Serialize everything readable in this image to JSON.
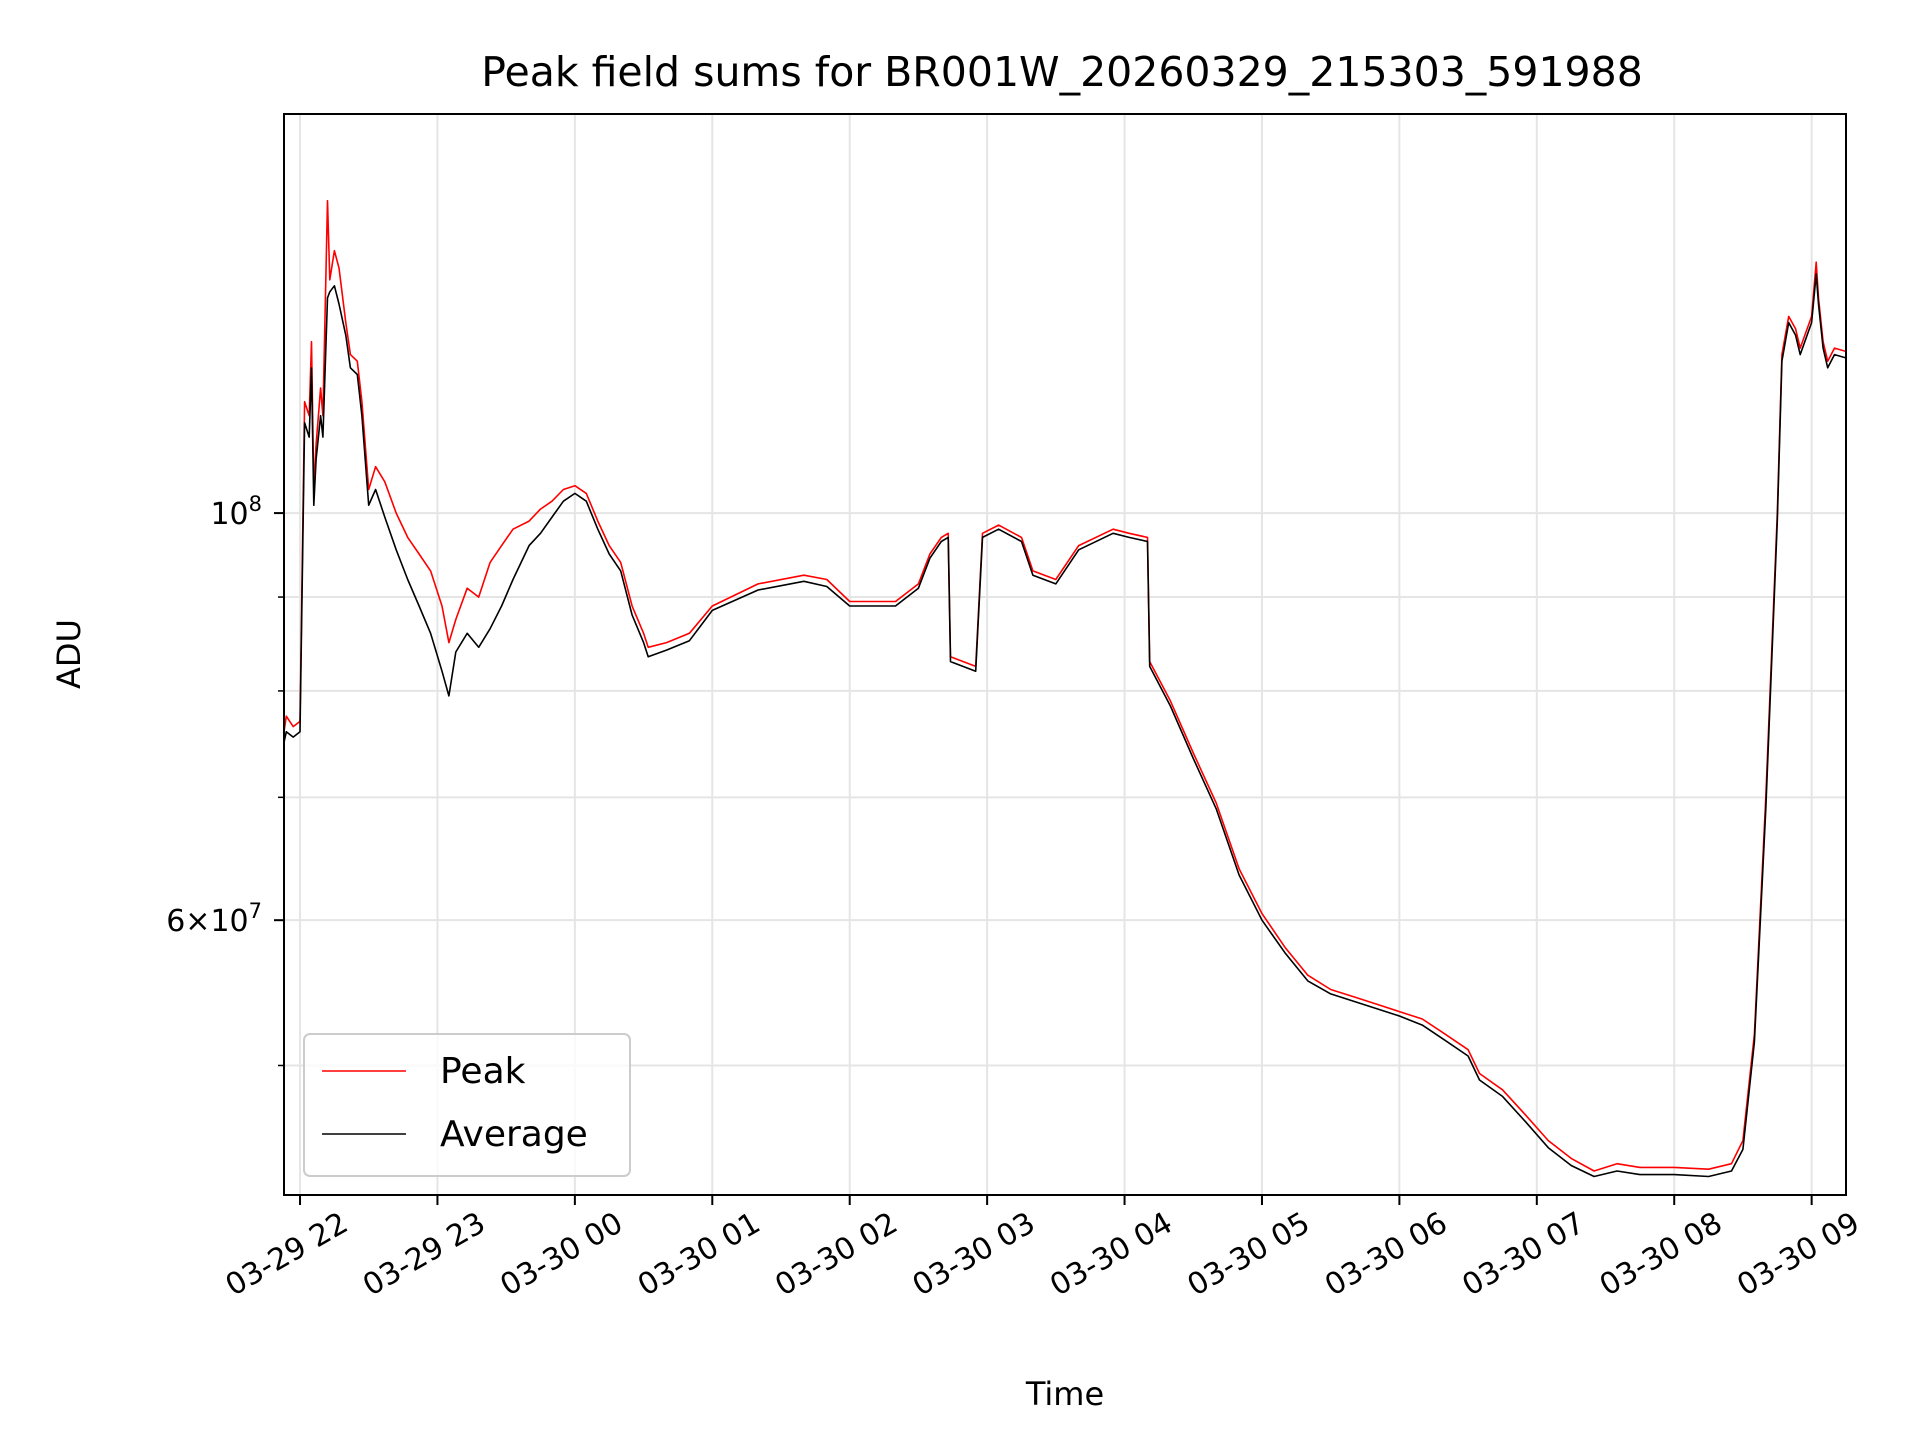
{
  "chart_data": {
    "type": "line",
    "title": "Peak field sums for BR001W_20260329_215303_591988",
    "xlabel": "Time",
    "ylabel": "ADU",
    "x_scale": "time",
    "y_scale": "log",
    "xlim": [
      "2026-03-29 21:53",
      "2026-03-30 09:15"
    ],
    "ylim": [
      42500000,
      165000000
    ],
    "x_ticks": [
      {
        "time": "2026-03-29 22:00",
        "label": "03-29 22"
      },
      {
        "time": "2026-03-29 23:00",
        "label": "03-29 23"
      },
      {
        "time": "2026-03-30 00:00",
        "label": "03-30 00"
      },
      {
        "time": "2026-03-30 01:00",
        "label": "03-30 01"
      },
      {
        "time": "2026-03-30 02:00",
        "label": "03-30 02"
      },
      {
        "time": "2026-03-30 03:00",
        "label": "03-30 03"
      },
      {
        "time": "2026-03-30 04:00",
        "label": "03-30 04"
      },
      {
        "time": "2026-03-30 05:00",
        "label": "03-30 05"
      },
      {
        "time": "2026-03-30 06:00",
        "label": "03-30 06"
      },
      {
        "time": "2026-03-30 07:00",
        "label": "03-30 07"
      },
      {
        "time": "2026-03-30 08:00",
        "label": "03-30 08"
      },
      {
        "time": "2026-03-30 09:00",
        "label": "03-30 09"
      }
    ],
    "y_ticks_major": [
      {
        "value": 100000000,
        "base": "10",
        "exp": "8",
        "mantissa": ""
      },
      {
        "value": 60000000,
        "base": "10",
        "exp": "7",
        "mantissa": "6"
      }
    ],
    "y_ticks_minor": [
      50000000,
      70000000,
      80000000,
      90000000
    ],
    "grid": true,
    "legend": {
      "placement": "lower-left",
      "entries": [
        "Peak",
        "Average"
      ]
    },
    "series": [
      {
        "name": "Peak",
        "color": "#ff0000",
        "points": [
          [
            "2026-03-29 21:53",
            76000000
          ],
          [
            "2026-03-29 21:54",
            77500000
          ],
          [
            "2026-03-29 21:57",
            76500000
          ],
          [
            "2026-03-29 22:00",
            77000000
          ],
          [
            "2026-03-29 22:02",
            115000000
          ],
          [
            "2026-03-29 22:04",
            113000000
          ],
          [
            "2026-03-29 22:05",
            124000000
          ],
          [
            "2026-03-29 22:06",
            103000000
          ],
          [
            "2026-03-29 22:07",
            109000000
          ],
          [
            "2026-03-29 22:08",
            113000000
          ],
          [
            "2026-03-29 22:09",
            117000000
          ],
          [
            "2026-03-29 22:10",
            113000000
          ],
          [
            "2026-03-29 22:12",
            148000000
          ],
          [
            "2026-03-29 22:13",
            134000000
          ],
          [
            "2026-03-29 22:15",
            139000000
          ],
          [
            "2026-03-29 22:17",
            136000000
          ],
          [
            "2026-03-29 22:20",
            127000000
          ],
          [
            "2026-03-29 22:22",
            122000000
          ],
          [
            "2026-03-29 22:25",
            121000000
          ],
          [
            "2026-03-29 22:27",
            115000000
          ],
          [
            "2026-03-29 22:30",
            103000000
          ],
          [
            "2026-03-29 22:33",
            106000000
          ],
          [
            "2026-03-29 22:37",
            104000000
          ],
          [
            "2026-03-29 22:42",
            100000000
          ],
          [
            "2026-03-29 22:47",
            97000000
          ],
          [
            "2026-03-29 22:52",
            95000000
          ],
          [
            "2026-03-29 22:57",
            93000000
          ],
          [
            "2026-03-29 23:02",
            89000000
          ],
          [
            "2026-03-29 23:05",
            85000000
          ],
          [
            "2026-03-29 23:08",
            87500000
          ],
          [
            "2026-03-29 23:13",
            91000000
          ],
          [
            "2026-03-29 23:18",
            90000000
          ],
          [
            "2026-03-29 23:23",
            94000000
          ],
          [
            "2026-03-29 23:28",
            96000000
          ],
          [
            "2026-03-29 23:33",
            98000000
          ],
          [
            "2026-03-29 23:40",
            99000000
          ],
          [
            "2026-03-29 23:45",
            100500000
          ],
          [
            "2026-03-29 23:50",
            101500000
          ],
          [
            "2026-03-29 23:55",
            103000000
          ],
          [
            "2026-03-30 00:00",
            103500000
          ],
          [
            "2026-03-30 00:05",
            102500000
          ],
          [
            "2026-03-30 00:10",
            99000000
          ],
          [
            "2026-03-30 00:15",
            96000000
          ],
          [
            "2026-03-30 00:20",
            94000000
          ],
          [
            "2026-03-30 00:25",
            89000000
          ],
          [
            "2026-03-30 00:30",
            86000000
          ],
          [
            "2026-03-30 00:32",
            84500000
          ],
          [
            "2026-03-30 00:40",
            85000000
          ],
          [
            "2026-03-30 00:50",
            86000000
          ],
          [
            "2026-03-30 01:00",
            89000000
          ],
          [
            "2026-03-30 01:20",
            91500000
          ],
          [
            "2026-03-30 01:40",
            92500000
          ],
          [
            "2026-03-30 01:50",
            92000000
          ],
          [
            "2026-03-30 02:00",
            89500000
          ],
          [
            "2026-03-30 02:20",
            89500000
          ],
          [
            "2026-03-30 02:30",
            91500000
          ],
          [
            "2026-03-30 02:35",
            95000000
          ],
          [
            "2026-03-30 02:40",
            97000000
          ],
          [
            "2026-03-30 02:43",
            97500000
          ],
          [
            "2026-03-30 02:44",
            83500000
          ],
          [
            "2026-03-30 02:55",
            82500000
          ],
          [
            "2026-03-30 02:58",
            97500000
          ],
          [
            "2026-03-30 03:05",
            98500000
          ],
          [
            "2026-03-30 03:15",
            97000000
          ],
          [
            "2026-03-30 03:20",
            93000000
          ],
          [
            "2026-03-30 03:30",
            92000000
          ],
          [
            "2026-03-30 03:40",
            96000000
          ],
          [
            "2026-03-30 03:55",
            98000000
          ],
          [
            "2026-03-30 04:02",
            97500000
          ],
          [
            "2026-03-30 04:10",
            97000000
          ],
          [
            "2026-03-30 04:11",
            83000000
          ],
          [
            "2026-03-30 04:20",
            79000000
          ],
          [
            "2026-03-30 04:30",
            74000000
          ],
          [
            "2026-03-30 04:40",
            69500000
          ],
          [
            "2026-03-30 04:50",
            64000000
          ],
          [
            "2026-03-30 05:00",
            60500000
          ],
          [
            "2026-03-30 05:10",
            58000000
          ],
          [
            "2026-03-30 05:20",
            56000000
          ],
          [
            "2026-03-30 05:30",
            55000000
          ],
          [
            "2026-03-30 05:40",
            54500000
          ],
          [
            "2026-03-30 05:50",
            54000000
          ],
          [
            "2026-03-30 06:00",
            53500000
          ],
          [
            "2026-03-30 06:10",
            53000000
          ],
          [
            "2026-03-30 06:20",
            52000000
          ],
          [
            "2026-03-30 06:30",
            51000000
          ],
          [
            "2026-03-30 06:35",
            49500000
          ],
          [
            "2026-03-30 06:45",
            48500000
          ],
          [
            "2026-03-30 06:55",
            47000000
          ],
          [
            "2026-03-30 07:05",
            45500000
          ],
          [
            "2026-03-30 07:15",
            44500000
          ],
          [
            "2026-03-30 07:25",
            43800000
          ],
          [
            "2026-03-30 07:35",
            44200000
          ],
          [
            "2026-03-30 07:45",
            44000000
          ],
          [
            "2026-03-30 08:00",
            44000000
          ],
          [
            "2026-03-30 08:15",
            43900000
          ],
          [
            "2026-03-30 08:25",
            44200000
          ],
          [
            "2026-03-30 08:30",
            45500000
          ],
          [
            "2026-03-30 08:35",
            52000000
          ],
          [
            "2026-03-30 08:40",
            70000000
          ],
          [
            "2026-03-30 08:45",
            100000000
          ],
          [
            "2026-03-30 08:47",
            122000000
          ],
          [
            "2026-03-30 08:50",
            128000000
          ],
          [
            "2026-03-30 08:53",
            126000000
          ],
          [
            "2026-03-30 08:55",
            123000000
          ],
          [
            "2026-03-30 09:00",
            128000000
          ],
          [
            "2026-03-30 09:02",
            137000000
          ],
          [
            "2026-03-30 09:03",
            131000000
          ],
          [
            "2026-03-30 09:05",
            124000000
          ],
          [
            "2026-03-30 09:07",
            121000000
          ],
          [
            "2026-03-30 09:10",
            123000000
          ],
          [
            "2026-03-30 09:15",
            122500000
          ]
        ]
      },
      {
        "name": "Average",
        "color": "#000000",
        "points": [
          [
            "2026-03-29 21:53",
            75000000
          ],
          [
            "2026-03-29 21:54",
            76000000
          ],
          [
            "2026-03-29 21:57",
            75500000
          ],
          [
            "2026-03-29 22:00",
            76000000
          ],
          [
            "2026-03-29 22:02",
            112000000
          ],
          [
            "2026-03-29 22:04",
            110000000
          ],
          [
            "2026-03-29 22:05",
            120000000
          ],
          [
            "2026-03-29 22:06",
            101000000
          ],
          [
            "2026-03-29 22:07",
            107000000
          ],
          [
            "2026-03-29 22:08",
            110000000
          ],
          [
            "2026-03-29 22:09",
            113000000
          ],
          [
            "2026-03-29 22:10",
            110000000
          ],
          [
            "2026-03-29 22:12",
            131000000
          ],
          [
            "2026-03-29 22:13",
            132000000
          ],
          [
            "2026-03-29 22:15",
            133000000
          ],
          [
            "2026-03-29 22:17",
            130000000
          ],
          [
            "2026-03-29 22:20",
            125000000
          ],
          [
            "2026-03-29 22:22",
            120000000
          ],
          [
            "2026-03-29 22:25",
            119000000
          ],
          [
            "2026-03-29 22:27",
            113000000
          ],
          [
            "2026-03-29 22:30",
            101000000
          ],
          [
            "2026-03-29 22:33",
            103000000
          ],
          [
            "2026-03-29 22:37",
            99500000
          ],
          [
            "2026-03-29 22:42",
            95500000
          ],
          [
            "2026-03-29 22:47",
            92000000
          ],
          [
            "2026-03-29 22:52",
            89000000
          ],
          [
            "2026-03-29 22:57",
            86000000
          ],
          [
            "2026-03-29 23:02",
            82000000
          ],
          [
            "2026-03-29 23:05",
            79500000
          ],
          [
            "2026-03-29 23:08",
            84000000
          ],
          [
            "2026-03-29 23:13",
            86000000
          ],
          [
            "2026-03-29 23:18",
            84500000
          ],
          [
            "2026-03-29 23:23",
            86500000
          ],
          [
            "2026-03-29 23:28",
            89000000
          ],
          [
            "2026-03-29 23:33",
            92000000
          ],
          [
            "2026-03-29 23:40",
            96000000
          ],
          [
            "2026-03-29 23:45",
            97500000
          ],
          [
            "2026-03-29 23:50",
            99500000
          ],
          [
            "2026-03-29 23:55",
            101500000
          ],
          [
            "2026-03-30 00:00",
            102500000
          ],
          [
            "2026-03-30 00:05",
            101500000
          ],
          [
            "2026-03-30 00:10",
            98000000
          ],
          [
            "2026-03-30 00:15",
            95000000
          ],
          [
            "2026-03-30 00:20",
            93000000
          ],
          [
            "2026-03-30 00:25",
            88000000
          ],
          [
            "2026-03-30 00:30",
            85000000
          ],
          [
            "2026-03-30 00:32",
            83500000
          ],
          [
            "2026-03-30 00:40",
            84200000
          ],
          [
            "2026-03-30 00:50",
            85200000
          ],
          [
            "2026-03-30 01:00",
            88500000
          ],
          [
            "2026-03-30 01:20",
            90800000
          ],
          [
            "2026-03-30 01:40",
            91800000
          ],
          [
            "2026-03-30 01:50",
            91200000
          ],
          [
            "2026-03-30 02:00",
            89000000
          ],
          [
            "2026-03-30 02:20",
            89000000
          ],
          [
            "2026-03-30 02:30",
            91000000
          ],
          [
            "2026-03-30 02:35",
            94500000
          ],
          [
            "2026-03-30 02:40",
            96500000
          ],
          [
            "2026-03-30 02:43",
            97000000
          ],
          [
            "2026-03-30 02:44",
            83000000
          ],
          [
            "2026-03-30 02:55",
            82000000
          ],
          [
            "2026-03-30 02:58",
            97000000
          ],
          [
            "2026-03-30 03:05",
            98000000
          ],
          [
            "2026-03-30 03:15",
            96500000
          ],
          [
            "2026-03-30 03:20",
            92500000
          ],
          [
            "2026-03-30 03:30",
            91500000
          ],
          [
            "2026-03-30 03:40",
            95500000
          ],
          [
            "2026-03-30 03:55",
            97500000
          ],
          [
            "2026-03-30 04:02",
            97000000
          ],
          [
            "2026-03-30 04:10",
            96500000
          ],
          [
            "2026-03-30 04:11",
            82500000
          ],
          [
            "2026-03-30 04:20",
            78500000
          ],
          [
            "2026-03-30 04:30",
            73500000
          ],
          [
            "2026-03-30 04:40",
            69000000
          ],
          [
            "2026-03-30 04:50",
            63500000
          ],
          [
            "2026-03-30 05:00",
            60000000
          ],
          [
            "2026-03-30 05:10",
            57600000
          ],
          [
            "2026-03-30 05:20",
            55600000
          ],
          [
            "2026-03-30 05:30",
            54700000
          ],
          [
            "2026-03-30 05:40",
            54200000
          ],
          [
            "2026-03-30 05:50",
            53700000
          ],
          [
            "2026-03-30 06:00",
            53200000
          ],
          [
            "2026-03-30 06:10",
            52600000
          ],
          [
            "2026-03-30 06:20",
            51600000
          ],
          [
            "2026-03-30 06:30",
            50600000
          ],
          [
            "2026-03-30 06:35",
            49100000
          ],
          [
            "2026-03-30 06:45",
            48100000
          ],
          [
            "2026-03-30 06:55",
            46600000
          ],
          [
            "2026-03-30 07:05",
            45100000
          ],
          [
            "2026-03-30 07:15",
            44100000
          ],
          [
            "2026-03-30 07:25",
            43500000
          ],
          [
            "2026-03-30 07:35",
            43800000
          ],
          [
            "2026-03-30 07:45",
            43600000
          ],
          [
            "2026-03-30 08:00",
            43600000
          ],
          [
            "2026-03-30 08:15",
            43500000
          ],
          [
            "2026-03-30 08:25",
            43800000
          ],
          [
            "2026-03-30 08:30",
            45000000
          ],
          [
            "2026-03-30 08:35",
            51500000
          ],
          [
            "2026-03-30 08:40",
            69000000
          ],
          [
            "2026-03-30 08:45",
            99000000
          ],
          [
            "2026-03-30 08:47",
            121000000
          ],
          [
            "2026-03-30 08:50",
            127000000
          ],
          [
            "2026-03-30 08:53",
            125000000
          ],
          [
            "2026-03-30 08:55",
            122000000
          ],
          [
            "2026-03-30 09:00",
            127000000
          ],
          [
            "2026-03-30 09:02",
            135000000
          ],
          [
            "2026-03-30 09:03",
            130000000
          ],
          [
            "2026-03-30 09:05",
            123000000
          ],
          [
            "2026-03-30 09:07",
            120000000
          ],
          [
            "2026-03-30 09:10",
            122000000
          ],
          [
            "2026-03-30 09:15",
            121500000
          ]
        ]
      }
    ]
  }
}
